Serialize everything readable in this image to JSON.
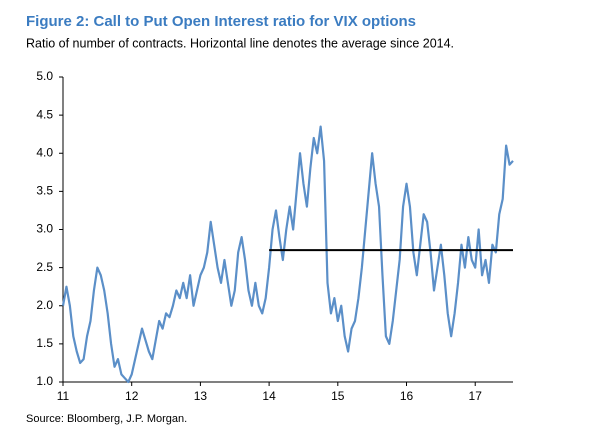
{
  "chart_data": {
    "type": "line",
    "title": "Figure 2: Call to Put Open Interest ratio for VIX options",
    "subtitle": "Ratio of number of contracts. Horizontal line denotes the average since 2014.",
    "source": "Source: Bloomberg, J.P. Morgan.",
    "x": [
      11.0,
      11.05,
      11.1,
      11.15,
      11.2,
      11.25,
      11.3,
      11.35,
      11.4,
      11.45,
      11.5,
      11.55,
      11.6,
      11.65,
      11.7,
      11.75,
      11.8,
      11.85,
      11.9,
      11.95,
      12.0,
      12.05,
      12.1,
      12.15,
      12.2,
      12.25,
      12.3,
      12.35,
      12.4,
      12.45,
      12.5,
      12.55,
      12.6,
      12.65,
      12.7,
      12.75,
      12.8,
      12.85,
      12.9,
      12.95,
      13.0,
      13.05,
      13.1,
      13.15,
      13.2,
      13.25,
      13.3,
      13.35,
      13.4,
      13.45,
      13.5,
      13.55,
      13.6,
      13.65,
      13.7,
      13.75,
      13.8,
      13.85,
      13.9,
      13.95,
      14.0,
      14.05,
      14.1,
      14.15,
      14.2,
      14.25,
      14.3,
      14.35,
      14.4,
      14.45,
      14.5,
      14.55,
      14.6,
      14.65,
      14.7,
      14.75,
      14.8,
      14.85,
      14.9,
      14.95,
      15.0,
      15.05,
      15.1,
      15.15,
      15.2,
      15.25,
      15.3,
      15.35,
      15.4,
      15.45,
      15.5,
      15.55,
      15.6,
      15.65,
      15.7,
      15.75,
      15.8,
      15.85,
      15.9,
      15.95,
      16.0,
      16.05,
      16.1,
      16.15,
      16.2,
      16.25,
      16.3,
      16.35,
      16.4,
      16.45,
      16.5,
      16.55,
      16.6,
      16.65,
      16.7,
      16.75,
      16.8,
      16.85,
      16.9,
      16.95,
      17.0,
      17.05,
      17.1,
      17.15,
      17.2,
      17.25,
      17.3,
      17.35,
      17.4,
      17.45,
      17.5,
      17.55
    ],
    "series": [
      {
        "color": "#5b8fc8",
        "values": [
          2.0,
          2.25,
          2.0,
          1.6,
          1.4,
          1.25,
          1.3,
          1.6,
          1.8,
          2.2,
          2.5,
          2.4,
          2.2,
          1.9,
          1.5,
          1.2,
          1.3,
          1.1,
          1.05,
          1.0,
          1.1,
          1.3,
          1.5,
          1.7,
          1.55,
          1.4,
          1.3,
          1.55,
          1.8,
          1.7,
          1.9,
          1.85,
          2.0,
          2.2,
          2.1,
          2.3,
          2.1,
          2.4,
          2.0,
          2.2,
          2.4,
          2.5,
          2.7,
          3.1,
          2.8,
          2.5,
          2.3,
          2.6,
          2.3,
          2.0,
          2.2,
          2.7,
          2.9,
          2.6,
          2.2,
          2.0,
          2.3,
          2.0,
          1.9,
          2.1,
          2.5,
          3.0,
          3.25,
          2.9,
          2.6,
          3.0,
          3.3,
          3.0,
          3.5,
          4.0,
          3.6,
          3.3,
          3.8,
          4.2,
          4.0,
          4.35,
          3.9,
          2.3,
          1.9,
          2.1,
          1.8,
          2.0,
          1.6,
          1.4,
          1.7,
          1.8,
          2.1,
          2.5,
          3.0,
          3.5,
          4.0,
          3.6,
          3.3,
          2.4,
          1.6,
          1.5,
          1.8,
          2.2,
          2.6,
          3.3,
          3.6,
          3.3,
          2.7,
          2.4,
          2.8,
          3.2,
          3.1,
          2.7,
          2.2,
          2.5,
          2.8,
          2.4,
          1.9,
          1.6,
          1.9,
          2.3,
          2.8,
          2.5,
          2.9,
          2.6,
          2.5,
          3.0,
          2.4,
          2.6,
          2.3,
          2.8,
          2.7,
          3.2,
          3.4,
          4.1,
          3.85,
          3.9
        ]
      }
    ],
    "average": {
      "value": 2.73,
      "x": [
        14,
        17.55
      ],
      "color": "#000000"
    },
    "xlim": [
      11,
      17.55
    ],
    "xticks": [
      11,
      12,
      13,
      14,
      15,
      16,
      17
    ],
    "ylim": [
      1,
      5
    ],
    "yticks": [
      {
        "value": 1,
        "label": "1.0"
      },
      1.5,
      {
        "value": 2,
        "label": "2.0"
      },
      2.5,
      {
        "value": 3,
        "label": "3.0"
      },
      3.5,
      {
        "value": 4,
        "label": "4.0"
      },
      4.5,
      {
        "value": 5,
        "label": "5.0"
      }
    ],
    "grid": false
  }
}
